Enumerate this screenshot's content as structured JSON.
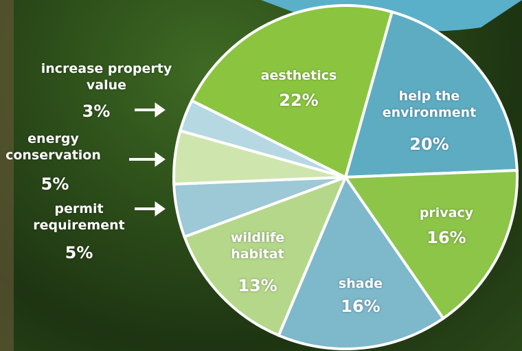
{
  "chart_data": {
    "type": "pie",
    "categories": [
      "help the environment",
      "privacy",
      "shade",
      "wildlife habitat",
      "permit requirement",
      "energy conservation",
      "increase property value",
      "aesthetics"
    ],
    "values": [
      20,
      16,
      16,
      13,
      5,
      5,
      3,
      22
    ],
    "value_labels": [
      "20%",
      "16%",
      "16%",
      "13%",
      "5%",
      "5%",
      "3%",
      "22%"
    ],
    "colors": [
      "#5eacc2",
      "#8cc548",
      "#7db8cb",
      "#b5d78a",
      "#9dc8d6",
      "#cfe5ae",
      "#b6d8e2",
      "#8bc53f"
    ]
  }
}
